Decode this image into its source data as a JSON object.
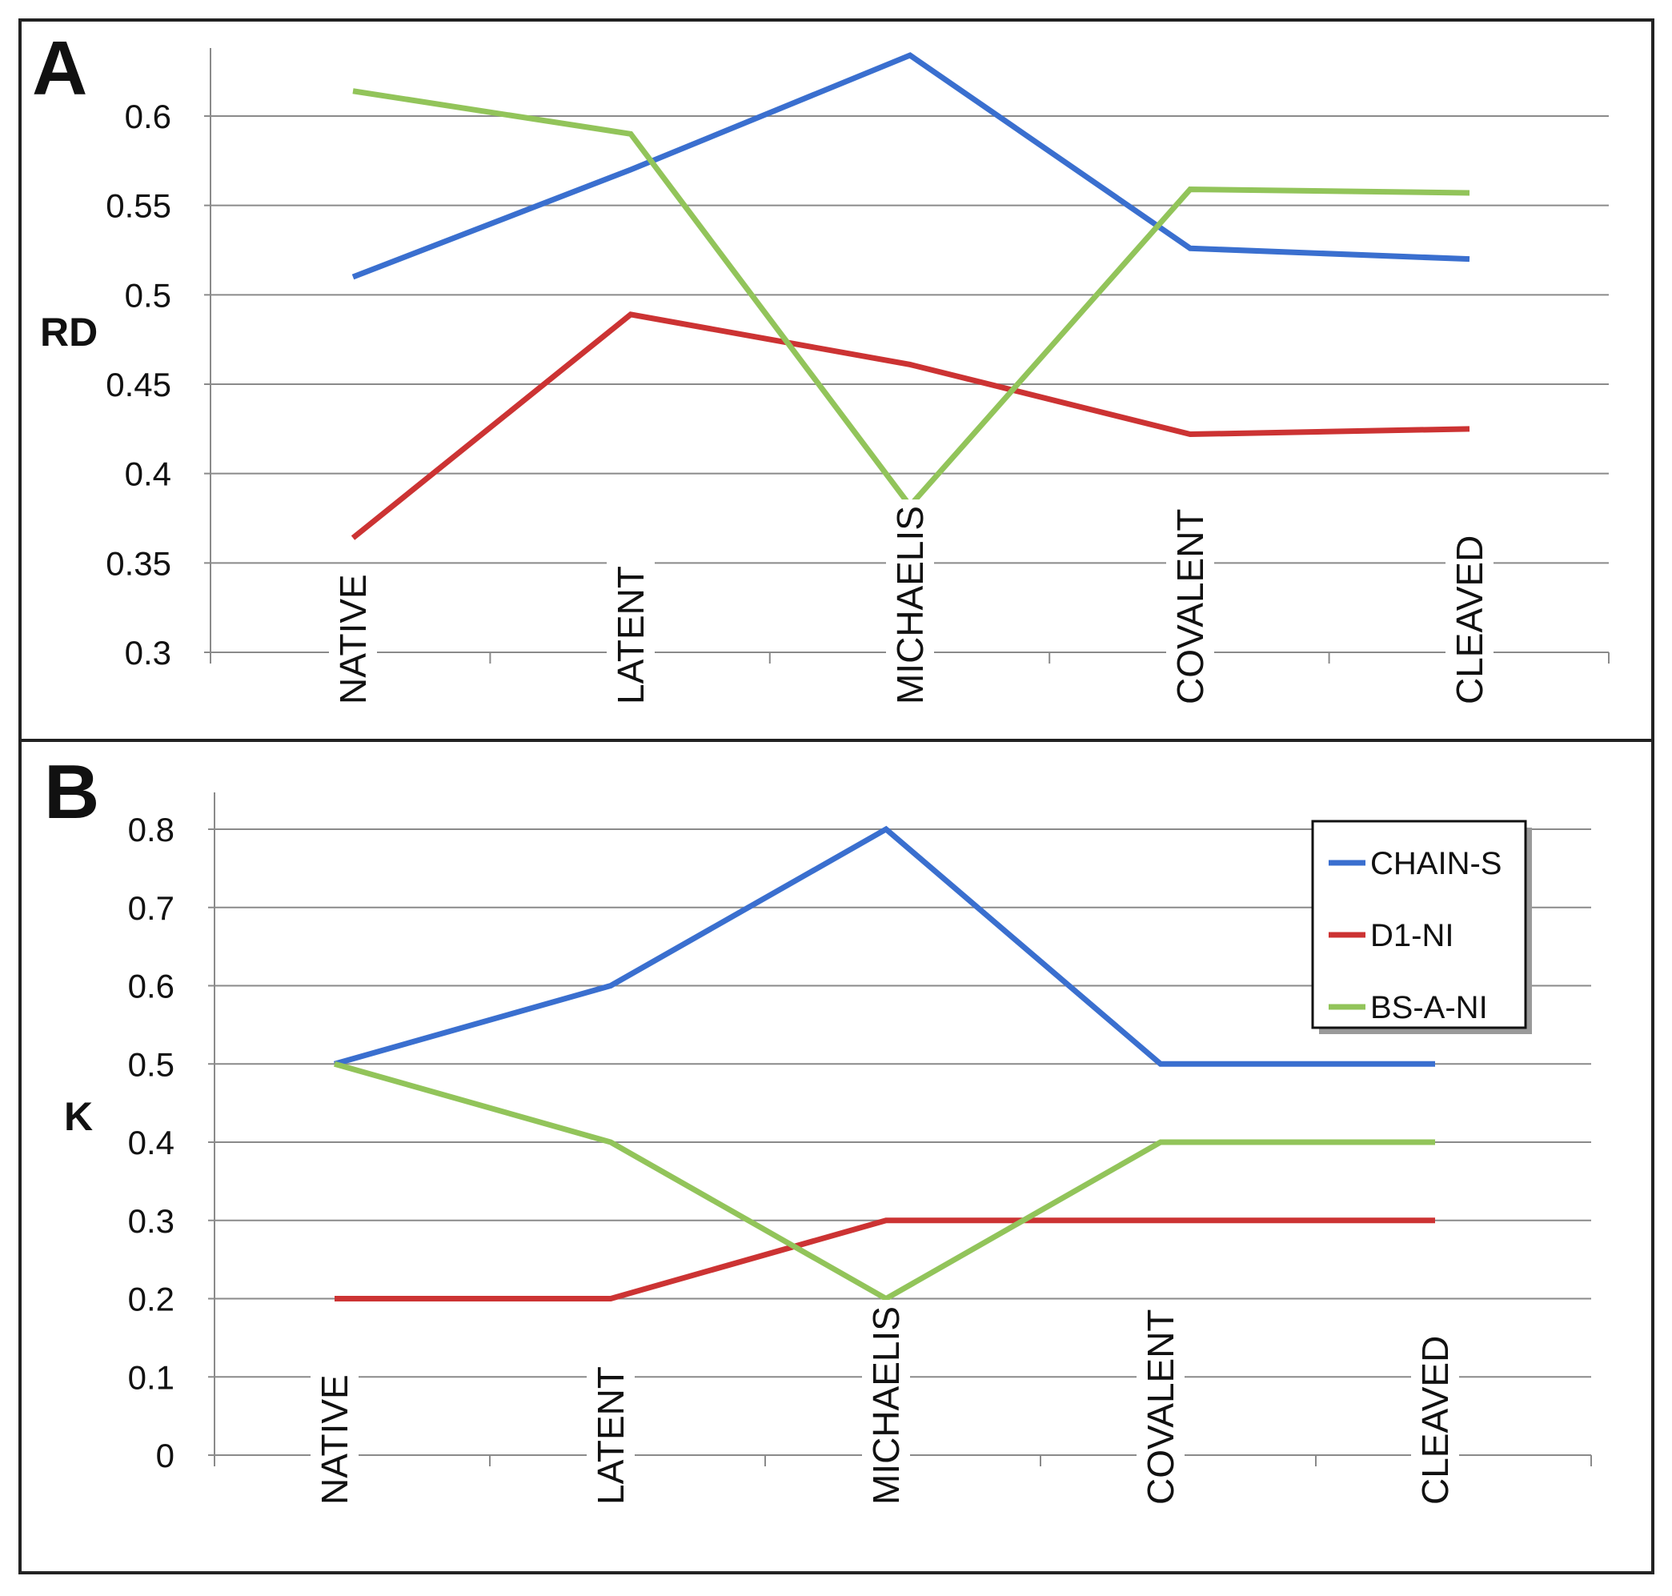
{
  "chart_data": [
    {
      "type": "line",
      "panel_label": "A",
      "ylabel": "RD",
      "xlabel": "",
      "categories": [
        "NATIVE",
        "LATENT",
        "MICHAELIS",
        "COVALENT",
        "CLEAVED"
      ],
      "ylim": [
        0.3,
        0.65
      ],
      "yticks": [
        "0.3",
        "0.35",
        "0.4",
        "0.45",
        "0.5",
        "0.55",
        "0.6"
      ],
      "grid": true,
      "series": [
        {
          "name": "CHAIN-S",
          "color": "#3a6fcf",
          "values": [
            0.51,
            0.57,
            0.634,
            0.526,
            0.52
          ]
        },
        {
          "name": "D1-NI",
          "color": "#cc3333",
          "values": [
            0.364,
            0.489,
            0.461,
            0.422,
            0.425
          ]
        },
        {
          "name": "BS-A-NI",
          "color": "#92c45a",
          "values": [
            0.614,
            0.59,
            0.382,
            0.559,
            0.557
          ]
        }
      ]
    },
    {
      "type": "line",
      "panel_label": "B",
      "ylabel": "K",
      "xlabel": "",
      "categories": [
        "NATIVE",
        "LATENT",
        "MICHAELIS",
        "COVALENT",
        "CLEAVED"
      ],
      "ylim": [
        0,
        0.85
      ],
      "yticks": [
        "0",
        "0.1",
        "0.2",
        "0.3",
        "0.4",
        "0.5",
        "0.6",
        "0.7",
        "0.8"
      ],
      "grid": true,
      "legend_position": "top-right",
      "series": [
        {
          "name": "CHAIN-S",
          "color": "#3a6fcf",
          "values": [
            0.5,
            0.6,
            0.8,
            0.5,
            0.5
          ]
        },
        {
          "name": "D1-NI",
          "color": "#cc3333",
          "values": [
            0.2,
            0.2,
            0.3,
            0.3,
            0.3
          ]
        },
        {
          "name": "BS-A-NI",
          "color": "#92c45a",
          "values": [
            0.5,
            0.4,
            0.2,
            0.4,
            0.4
          ]
        }
      ]
    }
  ]
}
